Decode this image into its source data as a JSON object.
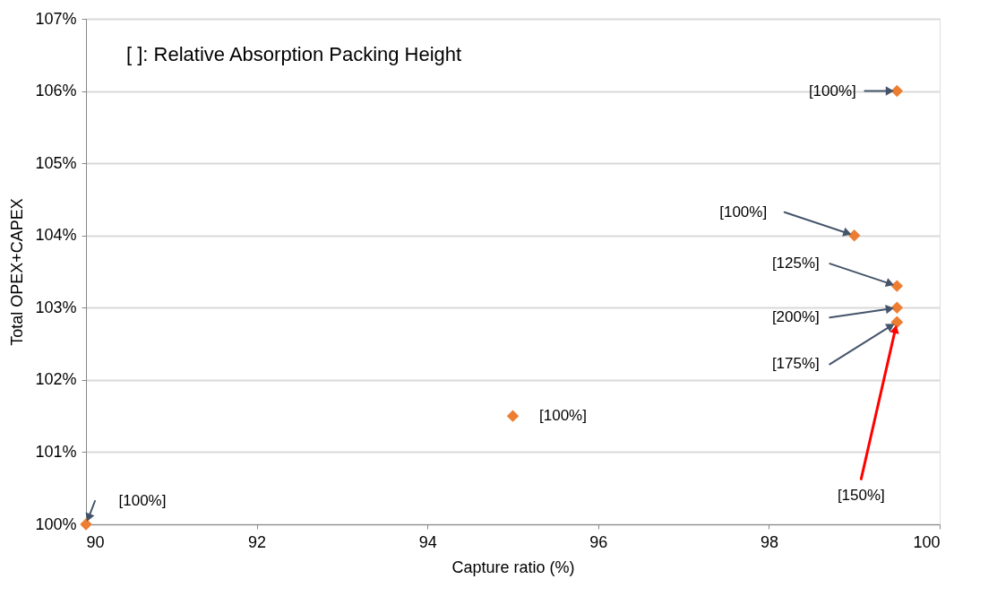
{
  "chart_data": {
    "type": "scatter",
    "xlabel": "Capture ratio (%)",
    "ylabel": "Total OPEX+CAPEX",
    "x": [
      90,
      95,
      99,
      99.5,
      99.5,
      99.5,
      99.5,
      99.5
    ],
    "series": [
      {
        "color": "#ed7d31",
        "values": [
          100,
          101.5,
          104,
          106,
          103.3,
          103.0,
          102.8,
          102.8
        ]
      }
    ],
    "xlim": [
      90,
      100
    ],
    "xticks": [
      90,
      92,
      94,
      96,
      98,
      100
    ],
    "ylim": [
      100,
      107
    ],
    "yticks": [
      {
        "value": 100,
        "label": "100%"
      },
      {
        "value": 101,
        "label": "101%"
      },
      {
        "value": 102,
        "label": "102%"
      },
      {
        "value": 103,
        "label": "103%"
      },
      {
        "value": 104,
        "label": "104%"
      },
      {
        "value": 105,
        "label": "105%"
      },
      {
        "value": 106,
        "label": "106%"
      },
      {
        "value": 107,
        "label": "107%"
      }
    ],
    "grid": "y",
    "marker": "diamond",
    "annotations": [
      "[   ]: Relative Absorption Packing Height",
      {
        "text": "[100%]",
        "x": 90,
        "y": 100
      },
      {
        "text": "[100%]",
        "x": 95,
        "y": 101.5
      },
      {
        "text": "[100%]",
        "x": 99,
        "y": 104
      },
      {
        "text": "[100%]",
        "x": 99.5,
        "y": 106
      },
      {
        "text": "[125%]",
        "x": 99.5,
        "y": 103.3
      },
      {
        "text": "[200%]",
        "x": 99.5,
        "y": 103.0
      },
      {
        "text": "[175%]",
        "x": 99.5,
        "y": 102.8
      },
      {
        "text": "[150%]",
        "x": 99.5,
        "y": 102.8
      }
    ]
  }
}
